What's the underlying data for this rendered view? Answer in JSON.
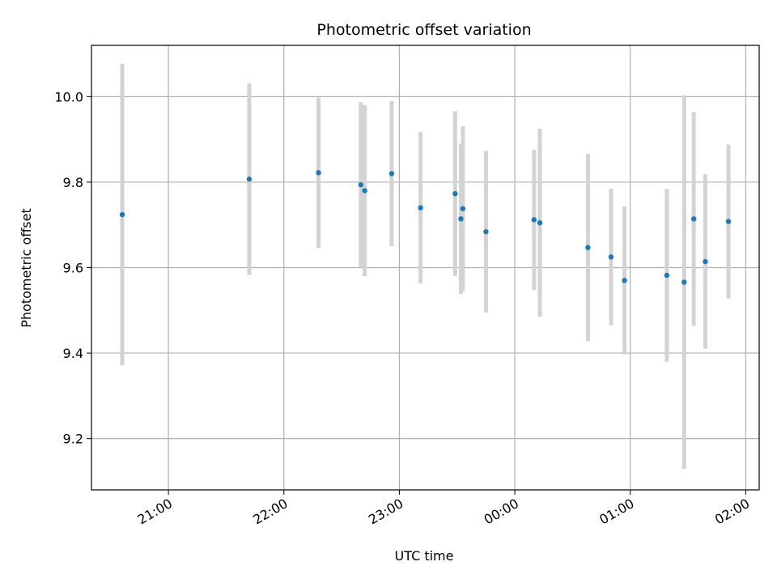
{
  "chart_data": {
    "type": "scatter",
    "title": "Photometric offset variation",
    "xlabel": "UTC time",
    "ylabel": "Photometric offset",
    "x_tick_labels": [
      "21:00",
      "22:00",
      "23:00",
      "00:00",
      "01:00",
      "02:00"
    ],
    "y_tick_labels": [
      "9.2",
      "9.4",
      "9.6",
      "9.8",
      "10.0"
    ],
    "xlim": [
      "20:20",
      "02:07"
    ],
    "ylim": [
      9.08,
      10.12
    ],
    "grid": true,
    "colors": {
      "point": "#1f77b4",
      "errorbar": "#d3d3d3",
      "grid": "#b0b0b0"
    },
    "points": [
      {
        "x": "20:36",
        "y": 9.724,
        "yerr": 0.353
      },
      {
        "x": "21:42",
        "y": 9.807,
        "yerr": 0.224
      },
      {
        "x": "22:18",
        "y": 9.822,
        "yerr": 0.176
      },
      {
        "x": "22:40",
        "y": 9.794,
        "yerr": 0.193
      },
      {
        "x": "22:42",
        "y": 9.78,
        "yerr": 0.2
      },
      {
        "x": "22:56",
        "y": 9.82,
        "yerr": 0.17
      },
      {
        "x": "23:11",
        "y": 9.74,
        "yerr": 0.177
      },
      {
        "x": "23:29",
        "y": 9.773,
        "yerr": 0.193
      },
      {
        "x": "23:32",
        "y": 9.714,
        "yerr": 0.176
      },
      {
        "x": "23:33",
        "y": 9.738,
        "yerr": 0.193
      },
      {
        "x": "23:45",
        "y": 9.684,
        "yerr": 0.189
      },
      {
        "x": "00:10",
        "y": 9.712,
        "yerr": 0.164
      },
      {
        "x": "00:13",
        "y": 9.705,
        "yerr": 0.22
      },
      {
        "x": "00:38",
        "y": 9.647,
        "yerr": 0.219
      },
      {
        "x": "00:50",
        "y": 9.625,
        "yerr": 0.16
      },
      {
        "x": "00:57",
        "y": 9.57,
        "yerr": 0.173
      },
      {
        "x": "01:19",
        "y": 9.582,
        "yerr": 0.202
      },
      {
        "x": "01:28",
        "y": 9.566,
        "yerr": 0.437
      },
      {
        "x": "01:33",
        "y": 9.714,
        "yerr": 0.25
      },
      {
        "x": "01:39",
        "y": 9.614,
        "yerr": 0.204
      },
      {
        "x": "01:51",
        "y": 9.708,
        "yerr": 0.18
      }
    ]
  }
}
